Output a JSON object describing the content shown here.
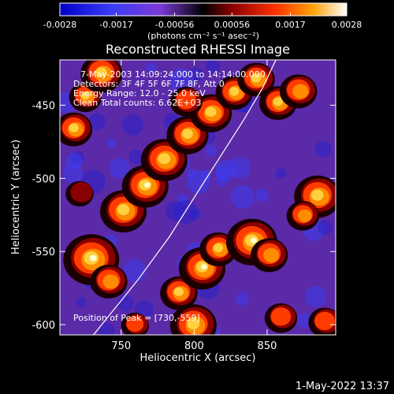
{
  "chart_data": {
    "type": "heatmap",
    "title": "Reconstructed RHESSI Image",
    "xlabel": "Heliocentric X (arcsec)",
    "ylabel": "Heliocentric Y (arcsec)",
    "xlim": [
      708,
      897
    ],
    "ylim": [
      -607,
      -419
    ],
    "xticks": [
      750,
      800,
      850
    ],
    "yticks": [
      -450,
      -500,
      -550,
      -600
    ],
    "colorbar": {
      "ticks": [
        "-0.0028",
        "-0.0017",
        "-0.00056",
        "0.00056",
        "0.0017",
        "0.0028"
      ],
      "range": [
        -0.0028,
        0.0028
      ],
      "unit_label": "(photons cm⁻² s⁻¹ asec⁻²)"
    },
    "annotations": [
      "7-May-2003 14:09:24.000 to 14:14:00.000",
      "Detectors: 3F 4F 5F 6F 7F 8F, Att 0",
      "Energy Range: 12.0 - 25.0 keV",
      "Clean     Total counts: 6.62E+03"
    ],
    "peak_label": "Position of Peak = [730,-559]",
    "peak_position": [
      730,
      -559
    ],
    "limb_curve": [
      [
        731,
        -607
      ],
      [
        761,
        -570
      ],
      [
        783,
        -540
      ],
      [
        802,
        -510
      ],
      [
        818,
        -485
      ],
      [
        834,
        -460
      ],
      [
        847,
        -438
      ],
      [
        856,
        -419
      ]
    ],
    "blobs": [
      [
        718,
        -466,
        8,
        0.85
      ],
      [
        726,
        -444,
        7,
        0.75
      ],
      [
        737,
        -428,
        9,
        0.8
      ],
      [
        722,
        -510,
        6,
        0.4
      ],
      [
        752,
        -522,
        10,
        0.9
      ],
      [
        767,
        -505,
        10,
        0.95
      ],
      [
        780,
        -487,
        10,
        0.9
      ],
      [
        796,
        -470,
        9,
        0.85
      ],
      [
        812,
        -455,
        9,
        0.9
      ],
      [
        828,
        -441,
        8,
        0.85
      ],
      [
        843,
        -432,
        8,
        0.8
      ],
      [
        858,
        -448,
        8,
        0.75
      ],
      [
        872,
        -440,
        8,
        0.65
      ],
      [
        795,
        -447,
        7,
        0.5
      ],
      [
        730,
        -555,
        12,
        1.0
      ],
      [
        742,
        -570,
        8,
        0.6
      ],
      [
        790,
        -578,
        8,
        0.75
      ],
      [
        806,
        -561,
        10,
        0.95
      ],
      [
        817,
        -548,
        8,
        0.8
      ],
      [
        800,
        -600,
        10,
        0.9
      ],
      [
        840,
        -543,
        11,
        0.95
      ],
      [
        852,
        -552,
        8,
        0.7
      ],
      [
        885,
        -512,
        10,
        0.9
      ],
      [
        875,
        -525,
        7,
        0.6
      ],
      [
        890,
        -598,
        7,
        0.55
      ],
      [
        860,
        -595,
        7,
        0.5
      ],
      [
        760,
        -600,
        6,
        0.45
      ]
    ]
  },
  "footer": {
    "timestamp": "1-May-2022 13:37"
  }
}
